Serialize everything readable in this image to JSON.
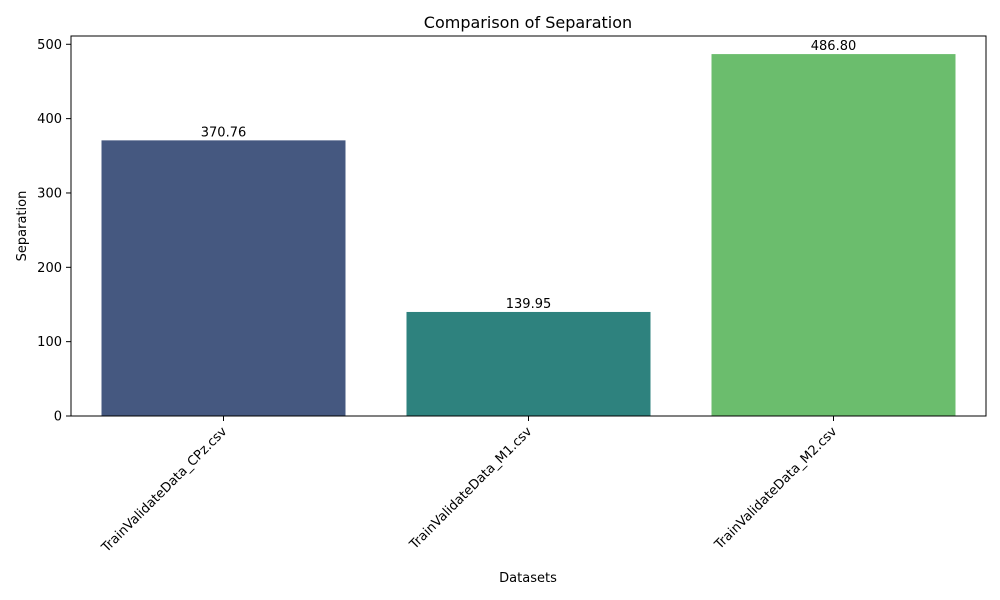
{
  "chart_data": {
    "type": "bar",
    "title": "Comparison of Separation",
    "xlabel": "Datasets",
    "ylabel": "Separation",
    "categories": [
      "TrainValidateData_CPz.csv",
      "TrainValidateData_M1.csv",
      "TrainValidateData_M2.csv"
    ],
    "values": [
      370.76,
      139.95,
      486.8
    ],
    "data_labels": [
      "370.76",
      "139.95",
      "486.80"
    ],
    "colors": [
      "#455880",
      "#2e827e",
      "#6bbd6d"
    ],
    "ylim": [
      0,
      511.14
    ],
    "yticks": [
      0,
      100,
      200,
      300,
      400,
      500
    ],
    "ytick_labels": [
      "0",
      "100",
      "200",
      "300",
      "400",
      "500"
    ],
    "grid": false,
    "legend": null
  }
}
